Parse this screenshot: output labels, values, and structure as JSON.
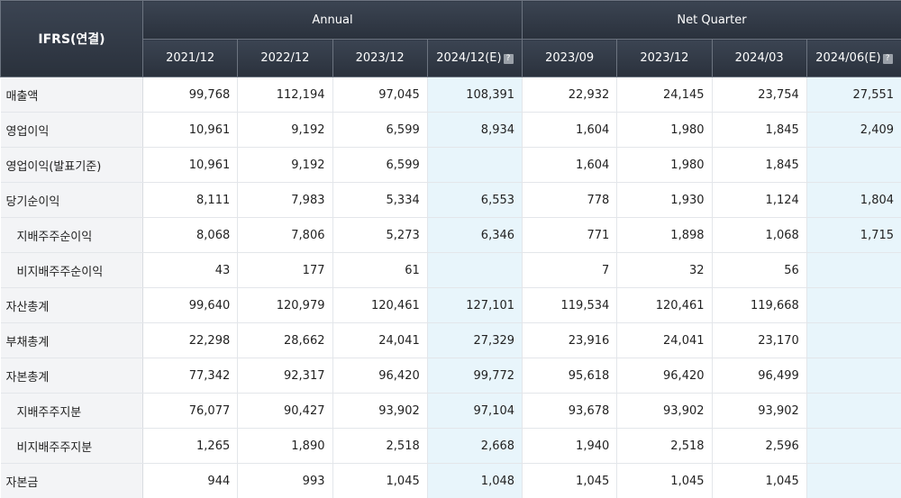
{
  "header": {
    "corner": "IFRS(연결)",
    "groups": {
      "annual": "Annual",
      "quarter": "Net Quarter"
    },
    "periods": [
      "2021/12",
      "2022/12",
      "2023/12",
      "2024/12(E)",
      "2023/09",
      "2023/12",
      "2024/03",
      "2024/06(E)"
    ]
  },
  "rows": [
    {
      "label": "매출액",
      "values": [
        "99,768",
        "112,194",
        "97,045",
        "108,391",
        "22,932",
        "24,145",
        "23,754",
        "27,551"
      ]
    },
    {
      "label": "영업이익",
      "values": [
        "10,961",
        "9,192",
        "6,599",
        "8,934",
        "1,604",
        "1,980",
        "1,845",
        "2,409"
      ]
    },
    {
      "label": "영업이익(발표기준)",
      "values": [
        "10,961",
        "9,192",
        "6,599",
        "",
        "1,604",
        "1,980",
        "1,845",
        ""
      ]
    },
    {
      "label": "당기순이익",
      "values": [
        "8,111",
        "7,983",
        "5,334",
        "6,553",
        "778",
        "1,930",
        "1,124",
        "1,804"
      ]
    },
    {
      "label": "지배주주순이익",
      "values": [
        "8,068",
        "7,806",
        "5,273",
        "6,346",
        "771",
        "1,898",
        "1,068",
        "1,715"
      ]
    },
    {
      "label": "비지배주주순이익",
      "values": [
        "43",
        "177",
        "61",
        "",
        "7",
        "32",
        "56",
        ""
      ]
    },
    {
      "label": "자산총계",
      "values": [
        "99,640",
        "120,979",
        "120,461",
        "127,101",
        "119,534",
        "120,461",
        "119,668",
        ""
      ]
    },
    {
      "label": "부채총계",
      "values": [
        "22,298",
        "28,662",
        "24,041",
        "27,329",
        "23,916",
        "24,041",
        "23,170",
        ""
      ]
    },
    {
      "label": "자본총계",
      "values": [
        "77,342",
        "92,317",
        "96,420",
        "99,772",
        "95,618",
        "96,420",
        "96,499",
        ""
      ]
    },
    {
      "label": "지배주주지분",
      "values": [
        "76,077",
        "90,427",
        "93,902",
        "97,104",
        "93,678",
        "93,902",
        "93,902",
        ""
      ]
    },
    {
      "label": "비지배주주지분",
      "values": [
        "1,265",
        "1,890",
        "2,518",
        "2,668",
        "1,940",
        "2,518",
        "2,596",
        ""
      ]
    },
    {
      "label": "자본금",
      "values": [
        "944",
        "993",
        "1,045",
        "1,048",
        "1,045",
        "1,045",
        "1,045",
        ""
      ]
    }
  ]
}
